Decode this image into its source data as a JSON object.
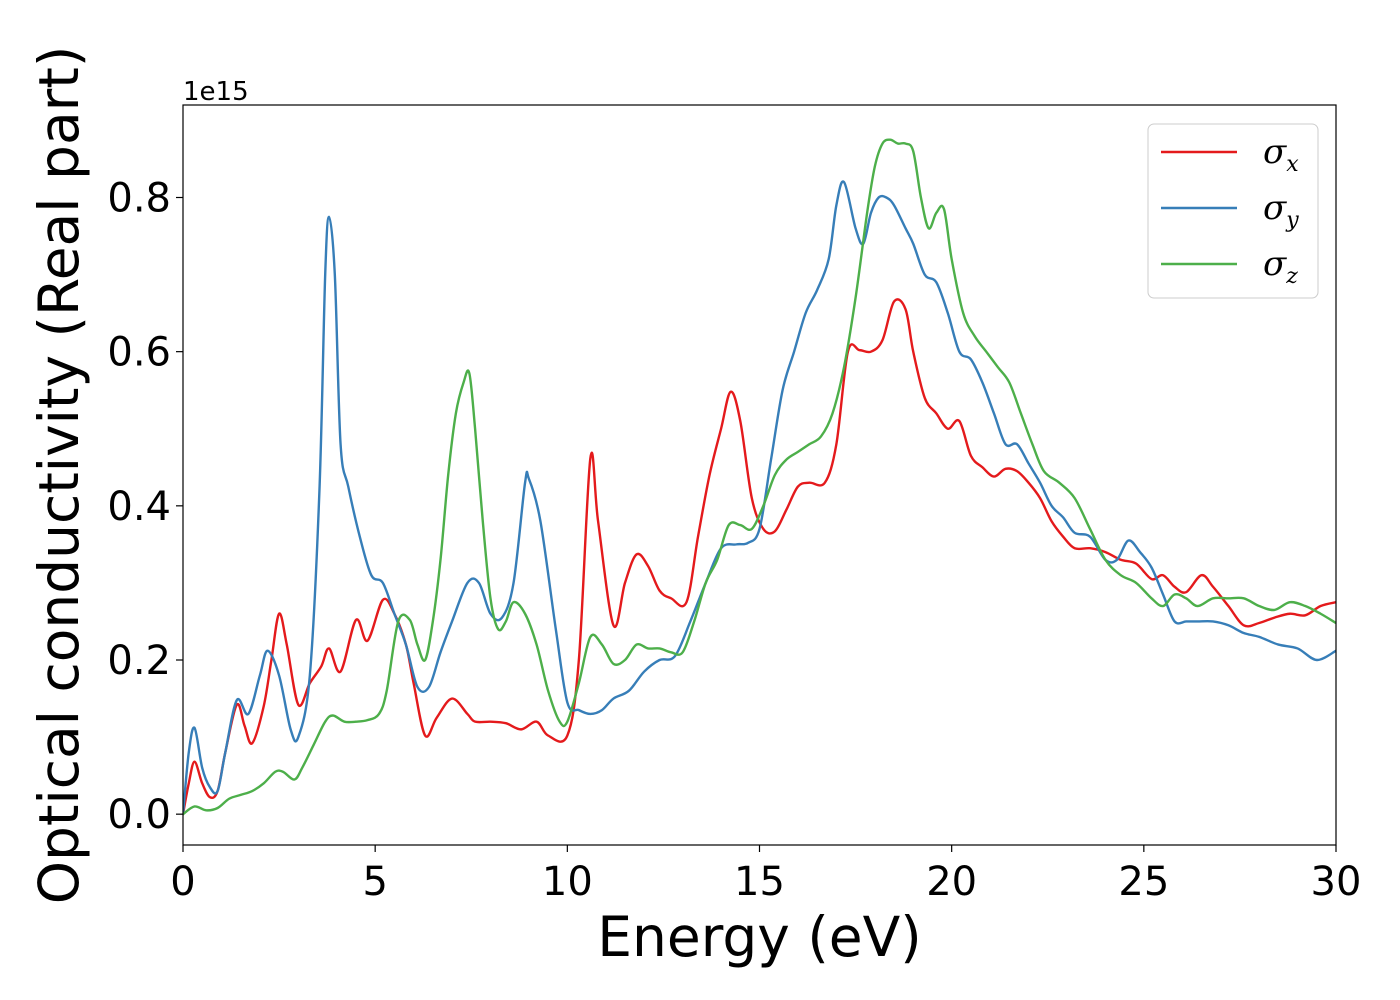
{
  "chart_data": {
    "type": "line",
    "title": "",
    "xlabel": "Energy (eV)",
    "ylabel": "Optical conductivity (Real part)",
    "y_offset_label": "1e15",
    "xlim": [
      0,
      30
    ],
    "ylim": [
      -0.04,
      0.92
    ],
    "xticks": [
      0,
      5,
      10,
      15,
      20,
      25,
      30
    ],
    "xtick_labels": [
      "0",
      "5",
      "10",
      "15",
      "20",
      "25",
      "30"
    ],
    "yticks": [
      0.0,
      0.2,
      0.4,
      0.6,
      0.8
    ],
    "ytick_labels": [
      "0.0",
      "0.2",
      "0.4",
      "0.6",
      "0.8"
    ],
    "grid": false,
    "legend_position": "top-right",
    "series": [
      {
        "name": "σx",
        "symbol": "σ",
        "subscript": "x",
        "color": "#e41a1c",
        "x": [
          0,
          0.15,
          0.3,
          0.5,
          0.7,
          0.9,
          1.1,
          1.4,
          1.6,
          1.8,
          2.1,
          2.3,
          2.5,
          2.7,
          3.0,
          3.3,
          3.6,
          3.8,
          4.1,
          4.5,
          4.8,
          5.2,
          5.5,
          5.8,
          6.0,
          6.3,
          6.6,
          7.0,
          7.4,
          7.6,
          8.0,
          8.4,
          8.8,
          9.2,
          9.5,
          10.0,
          10.3,
          10.6,
          10.8,
          11.2,
          11.5,
          11.8,
          12.1,
          12.4,
          12.7,
          13.1,
          13.4,
          13.7,
          14.0,
          14.25,
          14.5,
          14.8,
          15.1,
          15.4,
          15.7,
          16.0,
          16.3,
          16.7,
          17.0,
          17.3,
          17.6,
          17.9,
          18.2,
          18.5,
          18.8,
          19.0,
          19.3,
          19.6,
          19.9,
          20.2,
          20.5,
          20.8,
          21.1,
          21.4,
          21.7,
          22.0,
          22.3,
          22.6,
          22.9,
          23.2,
          23.6,
          24.0,
          24.4,
          24.8,
          25.2,
          25.5,
          25.8,
          26.1,
          26.5,
          26.8,
          27.2,
          27.6,
          28.0,
          28.4,
          28.8,
          29.2,
          29.6,
          30.0
        ],
        "y": [
          0.0,
          0.04,
          0.068,
          0.04,
          0.022,
          0.03,
          0.08,
          0.142,
          0.115,
          0.092,
          0.14,
          0.2,
          0.26,
          0.22,
          0.142,
          0.17,
          0.192,
          0.215,
          0.185,
          0.252,
          0.225,
          0.278,
          0.26,
          0.22,
          0.17,
          0.102,
          0.125,
          0.15,
          0.13,
          0.12,
          0.12,
          0.118,
          0.11,
          0.12,
          0.102,
          0.102,
          0.2,
          0.462,
          0.38,
          0.245,
          0.3,
          0.337,
          0.322,
          0.29,
          0.28,
          0.275,
          0.36,
          0.44,
          0.5,
          0.548,
          0.51,
          0.41,
          0.37,
          0.367,
          0.395,
          0.425,
          0.43,
          0.43,
          0.48,
          0.6,
          0.602,
          0.6,
          0.615,
          0.665,
          0.655,
          0.6,
          0.54,
          0.52,
          0.5,
          0.51,
          0.465,
          0.45,
          0.438,
          0.448,
          0.445,
          0.43,
          0.41,
          0.38,
          0.36,
          0.345,
          0.345,
          0.34,
          0.33,
          0.325,
          0.305,
          0.31,
          0.295,
          0.288,
          0.31,
          0.295,
          0.27,
          0.245,
          0.248,
          0.255,
          0.26,
          0.258,
          0.27,
          0.275
        ]
      },
      {
        "name": "σy",
        "symbol": "σ",
        "subscript": "y",
        "color": "#377eb8",
        "x": [
          0,
          0.15,
          0.3,
          0.5,
          0.7,
          0.9,
          1.1,
          1.4,
          1.7,
          2.0,
          2.2,
          2.5,
          2.8,
          3.0,
          3.3,
          3.55,
          3.7,
          3.8,
          3.95,
          4.1,
          4.3,
          4.6,
          4.9,
          5.2,
          5.5,
          5.8,
          6.1,
          6.4,
          6.7,
          7.0,
          7.4,
          7.7,
          8.0,
          8.3,
          8.6,
          8.9,
          9.0,
          9.3,
          9.7,
          10.0,
          10.3,
          10.6,
          10.9,
          11.2,
          11.6,
          12.0,
          12.4,
          12.8,
          13.2,
          13.6,
          14.0,
          14.4,
          14.7,
          15.0,
          15.3,
          15.6,
          15.9,
          16.2,
          16.5,
          16.8,
          17.0,
          17.2,
          17.5,
          17.7,
          17.9,
          18.1,
          18.3,
          18.5,
          18.8,
          19.0,
          19.3,
          19.6,
          19.9,
          20.2,
          20.5,
          20.8,
          21.1,
          21.4,
          21.7,
          22.0,
          22.3,
          22.6,
          22.9,
          23.2,
          23.6,
          24.0,
          24.3,
          24.6,
          24.9,
          25.2,
          25.5,
          25.8,
          26.1,
          26.4,
          26.8,
          27.2,
          27.6,
          28.0,
          28.5,
          29.0,
          29.5,
          30.0
        ],
        "y": [
          0.0,
          0.08,
          0.112,
          0.06,
          0.035,
          0.03,
          0.08,
          0.148,
          0.13,
          0.18,
          0.212,
          0.18,
          0.11,
          0.1,
          0.18,
          0.42,
          0.7,
          0.775,
          0.7,
          0.48,
          0.425,
          0.36,
          0.31,
          0.3,
          0.26,
          0.22,
          0.165,
          0.165,
          0.21,
          0.25,
          0.3,
          0.3,
          0.26,
          0.255,
          0.3,
          0.43,
          0.435,
          0.38,
          0.24,
          0.145,
          0.135,
          0.13,
          0.135,
          0.15,
          0.16,
          0.185,
          0.2,
          0.205,
          0.25,
          0.3,
          0.345,
          0.35,
          0.352,
          0.37,
          0.46,
          0.55,
          0.6,
          0.65,
          0.68,
          0.72,
          0.79,
          0.82,
          0.76,
          0.74,
          0.78,
          0.8,
          0.8,
          0.79,
          0.76,
          0.74,
          0.7,
          0.69,
          0.65,
          0.6,
          0.59,
          0.56,
          0.52,
          0.48,
          0.48,
          0.455,
          0.43,
          0.4,
          0.385,
          0.365,
          0.36,
          0.33,
          0.33,
          0.355,
          0.34,
          0.32,
          0.285,
          0.25,
          0.25,
          0.25,
          0.25,
          0.245,
          0.235,
          0.23,
          0.22,
          0.215,
          0.2,
          0.212
        ]
      },
      {
        "name": "σz",
        "symbol": "σ",
        "subscript": "z",
        "color": "#4daf4a",
        "x": [
          0,
          0.3,
          0.6,
          0.9,
          1.2,
          1.5,
          1.8,
          2.1,
          2.4,
          2.6,
          2.9,
          3.1,
          3.4,
          3.7,
          3.9,
          4.2,
          4.5,
          4.8,
          5.1,
          5.3,
          5.6,
          5.9,
          6.1,
          6.3,
          6.5,
          6.7,
          6.9,
          7.1,
          7.3,
          7.45,
          7.6,
          7.8,
          8.0,
          8.2,
          8.4,
          8.6,
          8.9,
          9.2,
          9.5,
          9.8,
          10.0,
          10.3,
          10.6,
          10.9,
          11.2,
          11.5,
          11.8,
          12.1,
          12.4,
          12.7,
          13.0,
          13.3,
          13.6,
          13.9,
          14.2,
          14.5,
          14.8,
          15.1,
          15.4,
          15.7,
          16.0,
          16.3,
          16.6,
          16.9,
          17.2,
          17.5,
          17.8,
          18.0,
          18.2,
          18.4,
          18.6,
          18.8,
          19.0,
          19.2,
          19.4,
          19.6,
          19.8,
          20.0,
          20.3,
          20.6,
          20.9,
          21.2,
          21.5,
          21.8,
          22.1,
          22.4,
          22.8,
          23.2,
          23.6,
          24.0,
          24.4,
          24.8,
          25.2,
          25.5,
          25.8,
          26.1,
          26.4,
          26.8,
          27.2,
          27.6,
          28.0,
          28.4,
          28.8,
          29.2,
          29.6,
          30.0
        ],
        "y": [
          0.0,
          0.01,
          0.005,
          0.008,
          0.02,
          0.025,
          0.03,
          0.04,
          0.055,
          0.055,
          0.045,
          0.06,
          0.09,
          0.12,
          0.128,
          0.12,
          0.12,
          0.122,
          0.13,
          0.16,
          0.25,
          0.252,
          0.22,
          0.2,
          0.25,
          0.33,
          0.44,
          0.52,
          0.56,
          0.572,
          0.5,
          0.38,
          0.28,
          0.24,
          0.25,
          0.275,
          0.26,
          0.22,
          0.16,
          0.12,
          0.12,
          0.17,
          0.23,
          0.22,
          0.195,
          0.2,
          0.22,
          0.215,
          0.215,
          0.21,
          0.21,
          0.25,
          0.3,
          0.33,
          0.375,
          0.375,
          0.37,
          0.4,
          0.44,
          0.46,
          0.47,
          0.48,
          0.49,
          0.52,
          0.58,
          0.67,
          0.78,
          0.84,
          0.87,
          0.875,
          0.87,
          0.87,
          0.86,
          0.8,
          0.76,
          0.78,
          0.785,
          0.72,
          0.65,
          0.62,
          0.6,
          0.58,
          0.56,
          0.52,
          0.48,
          0.445,
          0.43,
          0.41,
          0.37,
          0.33,
          0.31,
          0.3,
          0.28,
          0.27,
          0.285,
          0.28,
          0.27,
          0.28,
          0.28,
          0.28,
          0.27,
          0.265,
          0.275,
          0.27,
          0.26,
          0.248
        ]
      }
    ]
  }
}
